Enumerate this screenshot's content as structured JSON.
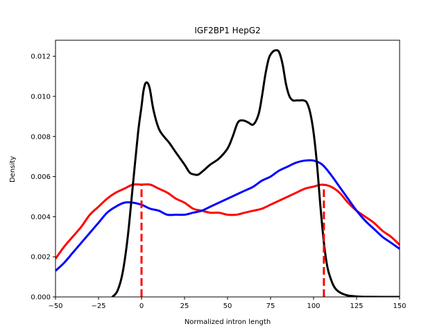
{
  "chart_data": {
    "type": "line",
    "title": "IGF2BP1 HepG2",
    "xlabel": "Normalized intron length",
    "ylabel": "Density",
    "xlim": [
      -50,
      150
    ],
    "ylim": [
      0,
      0.0128
    ],
    "xticks": [
      "-50",
      "-25",
      "0",
      "25",
      "50",
      "75",
      "100",
      "125",
      "150"
    ],
    "yticks": [
      "0.000",
      "0.002",
      "0.004",
      "0.006",
      "0.008",
      "0.010",
      "0.012"
    ],
    "grid": false,
    "series": [
      {
        "color": "#000000",
        "x": [
          -17,
          -14,
          -11,
          -8,
          -5,
          -2,
          0,
          1,
          2,
          3,
          4,
          5,
          7,
          10,
          13,
          16,
          20,
          25,
          28,
          31,
          33,
          36,
          40,
          45,
          50,
          53,
          56,
          59,
          62,
          65,
          68,
          70,
          72,
          74,
          76,
          78,
          80,
          82,
          84,
          86,
          88,
          90,
          92,
          94,
          96,
          98,
          100,
          102,
          104,
          106,
          108,
          110,
          112,
          114,
          117,
          120,
          124,
          128,
          133,
          140,
          150
        ],
        "y": [
          0.0,
          0.0003,
          0.0012,
          0.003,
          0.0056,
          0.0082,
          0.0095,
          0.0102,
          0.0106,
          0.0107,
          0.0106,
          0.0103,
          0.0093,
          0.0084,
          0.008,
          0.0077,
          0.0072,
          0.0066,
          0.0062,
          0.0061,
          0.0061,
          0.0063,
          0.0066,
          0.0069,
          0.0074,
          0.008,
          0.0087,
          0.0088,
          0.0087,
          0.0086,
          0.0091,
          0.01,
          0.0111,
          0.0119,
          0.0122,
          0.0123,
          0.0122,
          0.0116,
          0.0106,
          0.01,
          0.0098,
          0.0098,
          0.0098,
          0.0098,
          0.0097,
          0.0092,
          0.0082,
          0.0066,
          0.0045,
          0.0027,
          0.0015,
          0.0009,
          0.0005,
          0.0003,
          0.00015,
          7e-05,
          3e-05,
          1e-05,
          4e-06,
          1e-06,
          0.0
        ]
      },
      {
        "color": "#0000ff",
        "x": [
          -50,
          -45,
          -40,
          -35,
          -30,
          -25,
          -20,
          -15,
          -10,
          -5,
          0,
          5,
          10,
          15,
          20,
          25,
          30,
          35,
          40,
          45,
          50,
          55,
          60,
          65,
          70,
          75,
          80,
          85,
          90,
          95,
          100,
          105,
          110,
          115,
          120,
          125,
          130,
          135,
          140,
          145,
          150
        ],
        "y": [
          0.0013,
          0.0017,
          0.0022,
          0.0027,
          0.0032,
          0.0037,
          0.0042,
          0.0045,
          0.0047,
          0.0047,
          0.0046,
          0.0044,
          0.0043,
          0.0041,
          0.0041,
          0.0041,
          0.0042,
          0.0043,
          0.0045,
          0.0047,
          0.0049,
          0.0051,
          0.0053,
          0.0055,
          0.0058,
          0.006,
          0.0063,
          0.0065,
          0.0067,
          0.0068,
          0.0068,
          0.0066,
          0.0061,
          0.0055,
          0.0049,
          0.0043,
          0.0038,
          0.0034,
          0.003,
          0.0027,
          0.0024
        ]
      },
      {
        "color": "#ff0000",
        "x": [
          -50,
          -45,
          -40,
          -35,
          -30,
          -25,
          -20,
          -15,
          -10,
          -5,
          0,
          5,
          10,
          15,
          20,
          25,
          30,
          35,
          40,
          45,
          50,
          55,
          60,
          65,
          70,
          75,
          80,
          85,
          90,
          95,
          100,
          105,
          110,
          115,
          120,
          125,
          130,
          135,
          140,
          145,
          150
        ],
        "y": [
          0.0019,
          0.0025,
          0.003,
          0.0035,
          0.0041,
          0.0045,
          0.0049,
          0.0052,
          0.0054,
          0.0056,
          0.0056,
          0.0056,
          0.0054,
          0.0052,
          0.0049,
          0.0047,
          0.0044,
          0.0043,
          0.0042,
          0.0042,
          0.0041,
          0.0041,
          0.0042,
          0.0043,
          0.0044,
          0.0046,
          0.0048,
          0.005,
          0.0052,
          0.0054,
          0.0055,
          0.0056,
          0.0055,
          0.0052,
          0.0047,
          0.0043,
          0.004,
          0.0037,
          0.0033,
          0.003,
          0.0026
        ]
      }
    ],
    "vlines": [
      {
        "x": 0,
        "y": 0.0056,
        "color": "#ff0000"
      },
      {
        "x": 106,
        "y": 0.0056,
        "color": "#ff0000"
      }
    ]
  }
}
